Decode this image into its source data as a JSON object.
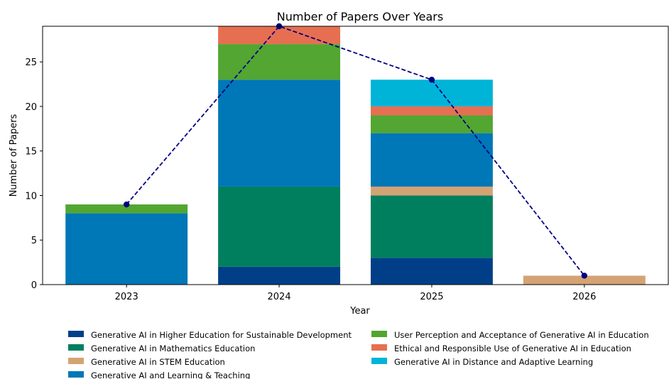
{
  "chart_data": {
    "type": "bar",
    "stacked": true,
    "title": "Number of Papers Over Years",
    "xlabel": "Year",
    "ylabel": "Number of Papers",
    "categories": [
      "2023",
      "2024",
      "2025",
      "2026"
    ],
    "ylim": [
      0,
      29
    ],
    "yticks": [
      0,
      5,
      10,
      15,
      20,
      25
    ],
    "grid": false,
    "legend_position": "bottom",
    "series": [
      {
        "name": "Generative AI in Higher Education for Sustainable Development",
        "color": "#003f88",
        "values": [
          0,
          2,
          3,
          0
        ]
      },
      {
        "name": "Generative AI in Mathematics Education",
        "color": "#007f5f",
        "values": [
          0,
          9,
          7,
          0
        ]
      },
      {
        "name": "Generative AI in STEM Education",
        "color": "#d4a373",
        "values": [
          0,
          0,
          1,
          1
        ]
      },
      {
        "name": "Generative AI and Learning & Teaching",
        "color": "#0077b6",
        "values": [
          8,
          12,
          6,
          0
        ]
      },
      {
        "name": "User Perception and Acceptance of Generative AI in Education",
        "color": "#52a631",
        "values": [
          1,
          4,
          2,
          0
        ]
      },
      {
        "name": "Ethical and Responsible Use of Generative AI in Education",
        "color": "#e76f51",
        "values": [
          0,
          2,
          1,
          0
        ]
      },
      {
        "name": "Generative AI in Distance and Adaptive Learning",
        "color": "#00b4d8",
        "values": [
          0,
          0,
          3,
          0
        ]
      }
    ],
    "total_line": {
      "values": [
        9,
        29,
        23,
        1
      ],
      "color": "#000080",
      "style": "dashed",
      "marker": "circle"
    }
  }
}
